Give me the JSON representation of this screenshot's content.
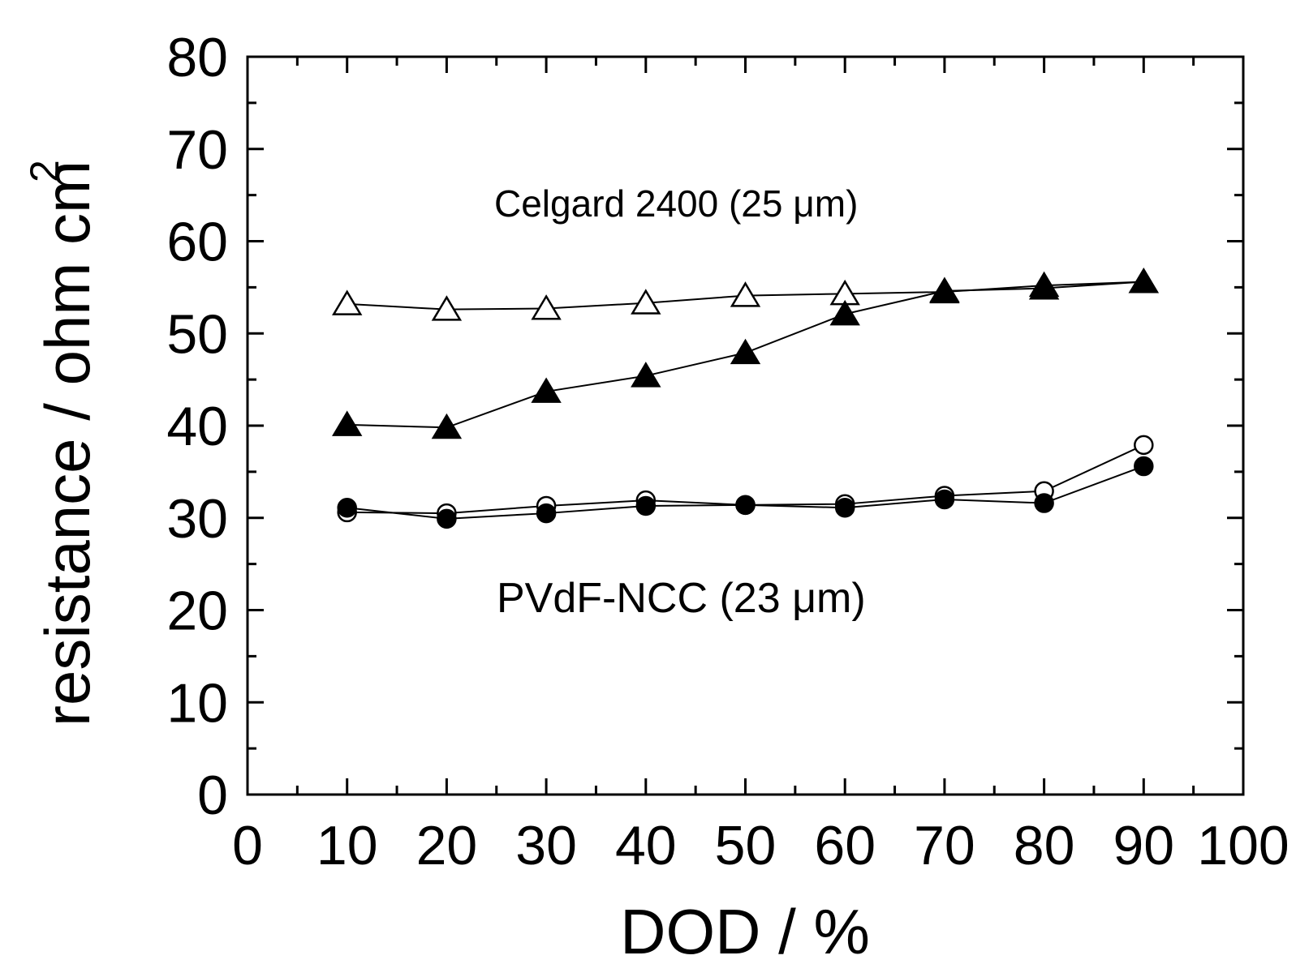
{
  "chart_data": {
    "type": "line",
    "title": "",
    "xlabel": "DOD / %",
    "ylabel": "resistance / ohm cm",
    "ylabel_superscript": "2",
    "xlim": [
      0,
      100
    ],
    "ylim": [
      0,
      80
    ],
    "xticks": [
      "0",
      "10",
      "20",
      "30",
      "40",
      "50",
      "60",
      "70",
      "80",
      "90",
      "100"
    ],
    "yticks": [
      "0",
      "10",
      "20",
      "30",
      "40",
      "50",
      "60",
      "70",
      "80"
    ],
    "grid": false,
    "annotations": [
      "Celgard 2400 (25 μm)",
      "PVdF-NCC (23 μm)"
    ],
    "x": [
      10,
      20,
      30,
      40,
      50,
      60,
      70,
      80,
      90
    ],
    "series": [
      {
        "marker": "triangle-open",
        "values": [
          53.2,
          52.6,
          52.7,
          53.3,
          54.1,
          54.3,
          54.5,
          55.2,
          55.6
        ]
      },
      {
        "marker": "triangle-filled",
        "values": [
          40.1,
          39.8,
          43.7,
          45.4,
          47.9,
          52.1,
          54.6,
          54.9,
          55.6
        ]
      },
      {
        "marker": "circle-open",
        "values": [
          30.6,
          30.5,
          31.3,
          31.9,
          31.4,
          31.5,
          32.4,
          32.9,
          37.9
        ]
      },
      {
        "marker": "circle-filled",
        "values": [
          31.1,
          29.9,
          30.5,
          31.3,
          31.4,
          31.1,
          32.0,
          31.6,
          35.6
        ]
      }
    ]
  }
}
